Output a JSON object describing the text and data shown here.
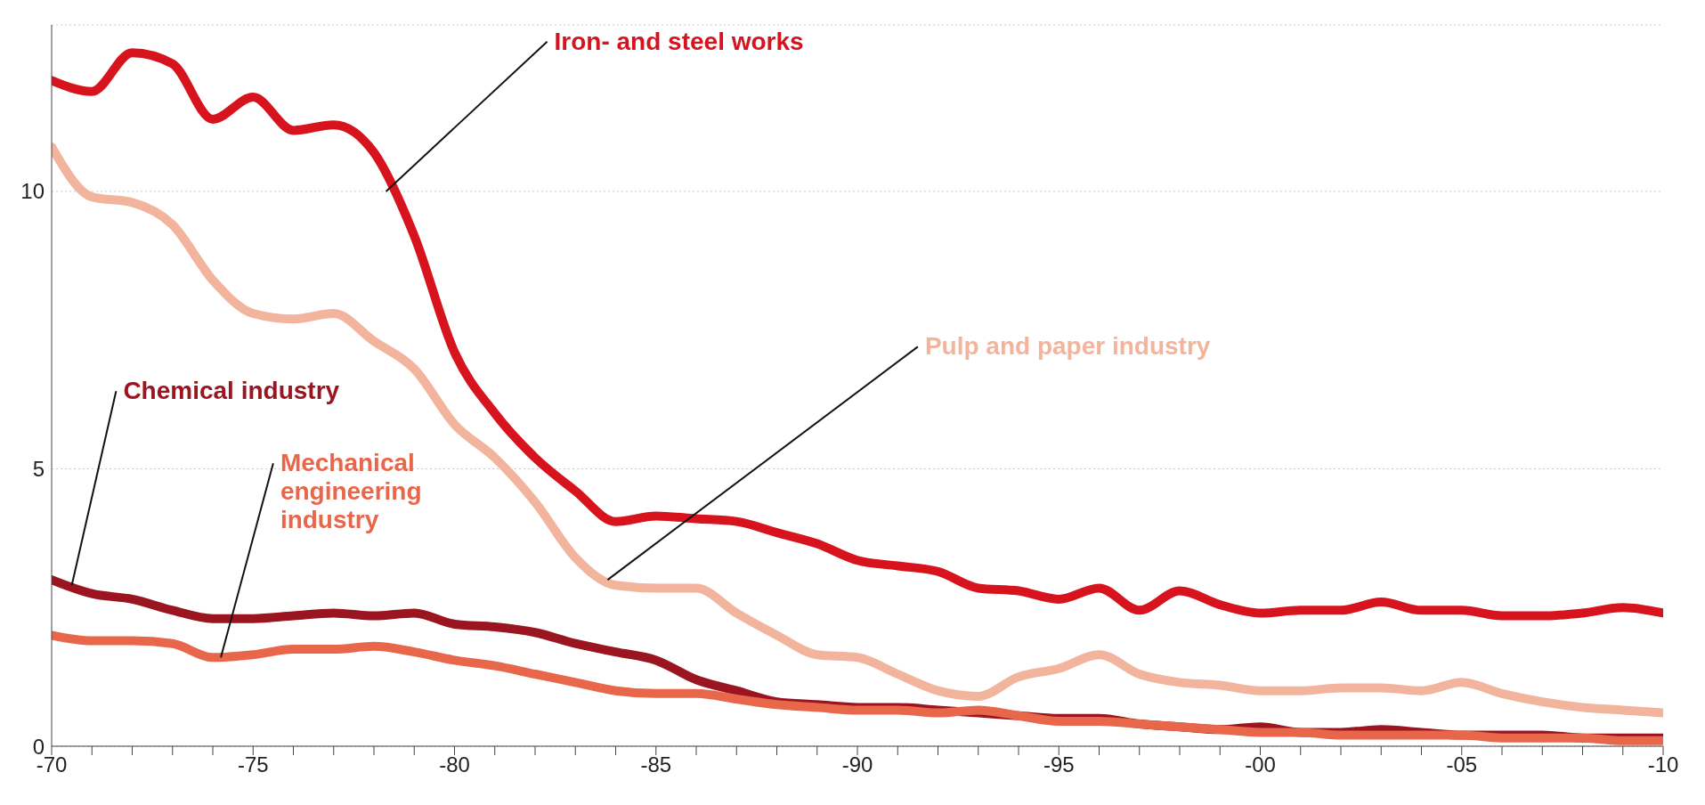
{
  "chart_data": {
    "type": "line",
    "categories": [
      "-70",
      null,
      null,
      null,
      null,
      "-75",
      null,
      null,
      null,
      null,
      "-80",
      null,
      null,
      null,
      null,
      "-85",
      null,
      null,
      null,
      null,
      "-90",
      null,
      null,
      null,
      null,
      "-95",
      null,
      null,
      null,
      null,
      "-00",
      null,
      null,
      null,
      null,
      "-05",
      null,
      null,
      null,
      null,
      "-10"
    ],
    "series": [
      {
        "name": "Iron- and steel works",
        "color": "#d7141e",
        "values": [
          12.0,
          11.8,
          12.5,
          12.3,
          11.3,
          11.7,
          11.1,
          11.2,
          10.7,
          9.2,
          7.1,
          6.0,
          5.2,
          4.6,
          4.05,
          4.15,
          4.1,
          4.05,
          3.85,
          3.65,
          3.35,
          3.25,
          3.15,
          2.85,
          2.8,
          2.65,
          2.85,
          2.45,
          2.8,
          2.55,
          2.4,
          2.45,
          2.45,
          2.6,
          2.45,
          2.45,
          2.35,
          2.35,
          2.4,
          2.5,
          2.4
        ]
      },
      {
        "name": "Pulp and paper industry",
        "color": "#f2b49c",
        "values": [
          10.8,
          9.9,
          9.8,
          9.4,
          8.4,
          7.8,
          7.7,
          7.8,
          7.3,
          6.8,
          5.8,
          5.2,
          4.4,
          3.4,
          2.9,
          2.85,
          2.85,
          2.4,
          2.0,
          1.65,
          1.6,
          1.3,
          1.0,
          0.9,
          1.25,
          1.4,
          1.65,
          1.3,
          1.15,
          1.1,
          1.0,
          1.0,
          1.05,
          1.05,
          1.0,
          1.15,
          0.95,
          0.8,
          0.7,
          0.65,
          0.6
        ]
      },
      {
        "name": "Chemical industry",
        "color": "#9b1520",
        "values": [
          3.0,
          2.75,
          2.65,
          2.45,
          2.3,
          2.3,
          2.35,
          2.4,
          2.35,
          2.4,
          2.2,
          2.15,
          2.05,
          1.85,
          1.7,
          1.55,
          1.2,
          1.0,
          0.8,
          0.75,
          0.7,
          0.7,
          0.65,
          0.6,
          0.55,
          0.5,
          0.5,
          0.4,
          0.35,
          0.3,
          0.35,
          0.25,
          0.25,
          0.3,
          0.25,
          0.2,
          0.2,
          0.2,
          0.15,
          0.15,
          0.15
        ]
      },
      {
        "name": "Mechanical engineering industry",
        "color": "#e8664a",
        "values": [
          2.0,
          1.9,
          1.9,
          1.85,
          1.6,
          1.65,
          1.75,
          1.75,
          1.8,
          1.7,
          1.55,
          1.45,
          1.3,
          1.15,
          1.0,
          0.95,
          0.95,
          0.85,
          0.75,
          0.7,
          0.65,
          0.65,
          0.6,
          0.65,
          0.55,
          0.45,
          0.45,
          0.4,
          0.35,
          0.3,
          0.25,
          0.25,
          0.2,
          0.2,
          0.2,
          0.2,
          0.15,
          0.15,
          0.15,
          0.1,
          0.1
        ]
      }
    ],
    "ylim": [
      0,
      13
    ],
    "yticks": [
      0,
      5,
      10
    ],
    "grid": "y",
    "legend": false,
    "marker": "none",
    "line_style": "solid"
  }
}
